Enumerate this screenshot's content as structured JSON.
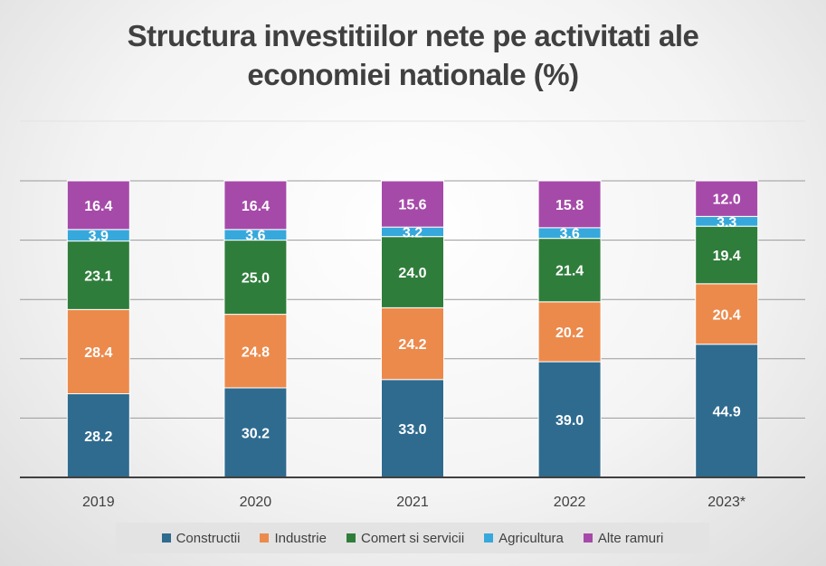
{
  "title_lines": [
    "Structura investitiilor nete pe activitati ale",
    "economiei nationale (%)"
  ],
  "chart_data": {
    "type": "bar",
    "stacked": true,
    "title": "Structura investitiilor nete pe activitati ale economiei nationale (%)",
    "categories": [
      "2019",
      "2020",
      "2021",
      "2022",
      "2023*"
    ],
    "ylim": [
      0,
      100
    ],
    "grid": true,
    "legend_position": "bottom",
    "series": [
      {
        "name": "Constructii",
        "color": "#2f6b8f",
        "values": [
          28.2,
          30.2,
          33.0,
          39.0,
          44.9
        ]
      },
      {
        "name": "Industrie",
        "color": "#ec8a4c",
        "values": [
          28.4,
          24.8,
          24.2,
          20.2,
          20.4
        ]
      },
      {
        "name": "Comert si servicii",
        "color": "#2f7d3b",
        "values": [
          23.1,
          25.0,
          24.0,
          21.4,
          19.4
        ]
      },
      {
        "name": "Agricultura",
        "color": "#37a8db",
        "values": [
          3.9,
          3.6,
          3.2,
          3.6,
          3.3
        ]
      },
      {
        "name": "Alte ramuri",
        "color": "#a64aa9",
        "values": [
          16.4,
          16.4,
          15.6,
          15.8,
          12.0
        ]
      }
    ]
  }
}
